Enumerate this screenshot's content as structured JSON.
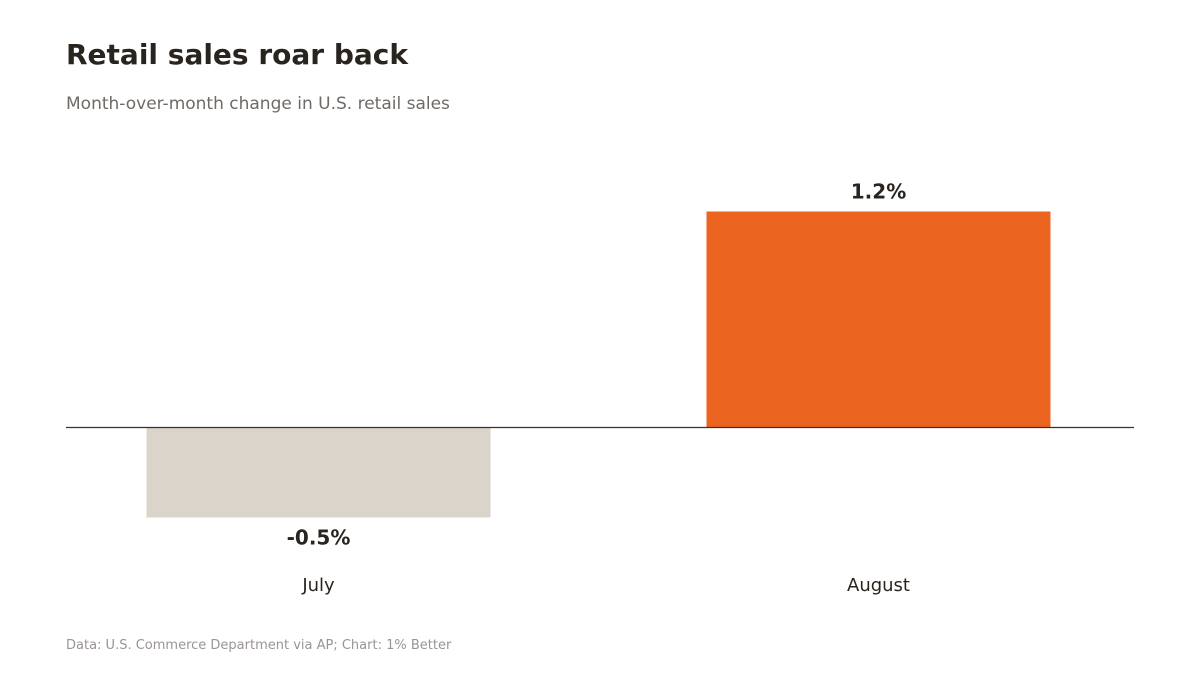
{
  "title": "Retail sales roar back",
  "subtitle": "Month-over-month change in U.S. retail sales",
  "source": "Data: U.S. Commerce Department via AP; Chart: 1% Better",
  "colors": {
    "negative": "#dbd4ca",
    "positive": "#ec6520",
    "baseline": "#333333",
    "label": "#2a241f",
    "category": "#2a241f"
  },
  "chart_data": {
    "type": "bar",
    "categories": [
      "July",
      "August"
    ],
    "values": [
      -0.5,
      1.2
    ],
    "value_labels": [
      "-0.5%",
      "1.2%"
    ],
    "title": "Retail sales roar back",
    "subtitle": "Month-over-month change in U.S. retail sales",
    "xlabel": "",
    "ylabel": "",
    "ylim": [
      -0.5,
      1.2
    ],
    "grid": false,
    "legend": "none"
  }
}
